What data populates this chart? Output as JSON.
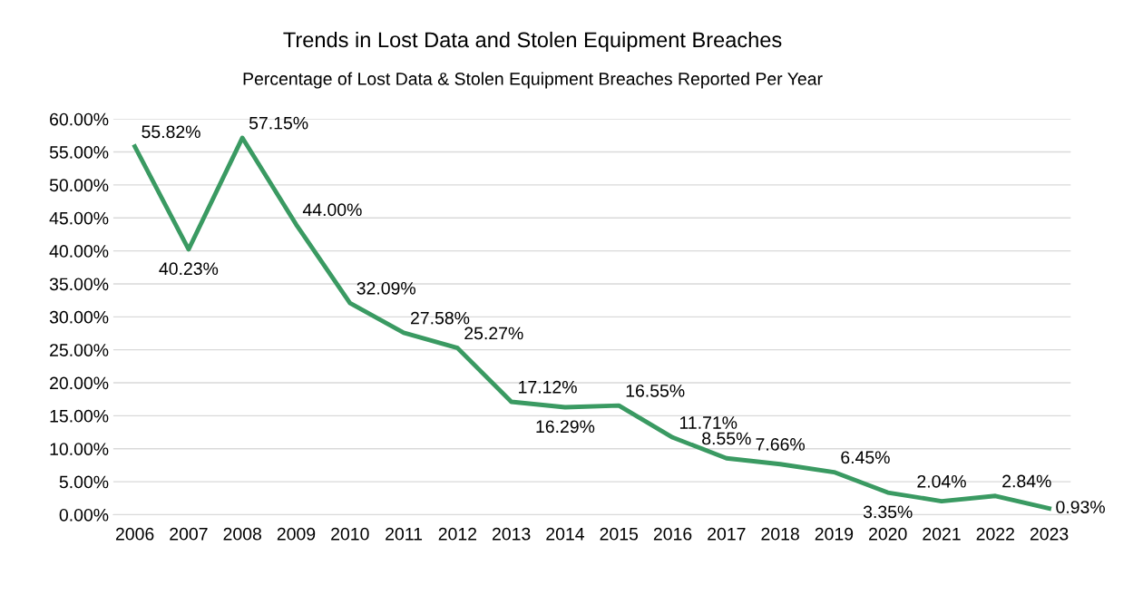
{
  "chart_data": {
    "type": "line",
    "title": "Trends in Lost Data and Stolen Equipment Breaches",
    "subtitle": "Percentage of Lost Data & Stolen Equipment Breaches Reported Per Year",
    "categories": [
      "2006",
      "2007",
      "2008",
      "2009",
      "2010",
      "2011",
      "2012",
      "2013",
      "2014",
      "2015",
      "2016",
      "2017",
      "2018",
      "2019",
      "2020",
      "2021",
      "2022",
      "2023"
    ],
    "series": [
      {
        "color": "#3a9a62",
        "values": [
          55.82,
          40.23,
          57.15,
          44.0,
          32.09,
          27.58,
          25.27,
          17.12,
          16.29,
          16.55,
          11.71,
          8.55,
          7.66,
          6.45,
          3.35,
          2.04,
          2.84,
          0.93
        ],
        "value_labels": [
          "55.82%",
          "40.23%",
          "57.15%",
          "44.00%",
          "32.09%",
          "27.58%",
          "25.27%",
          "17.12%",
          "16.29%",
          "16.55%",
          "11.71%",
          "8.55%",
          "7.66%",
          "6.45%",
          "3.35%",
          "2.04%",
          "2.84%",
          "0.93%"
        ]
      }
    ],
    "ylim": [
      0,
      60
    ],
    "yticks": [
      {
        "value": 0,
        "label": "0.00%"
      },
      {
        "value": 5,
        "label": "5.00%"
      },
      {
        "value": 10,
        "label": "10.00%"
      },
      {
        "value": 15,
        "label": "15.00%"
      },
      {
        "value": 20,
        "label": "20.00%"
      },
      {
        "value": 25,
        "label": "25.00%"
      },
      {
        "value": 30,
        "label": "30.00%"
      },
      {
        "value": 35,
        "label": "35.00%"
      },
      {
        "value": 40,
        "label": "40.00%"
      },
      {
        "value": 45,
        "label": "45.00%"
      },
      {
        "value": 50,
        "label": "50.00%"
      },
      {
        "value": 55,
        "label": "55.00%"
      },
      {
        "value": 60,
        "label": "60.00%"
      }
    ],
    "grid": "y",
    "marker": "none",
    "line_style": "solid"
  }
}
